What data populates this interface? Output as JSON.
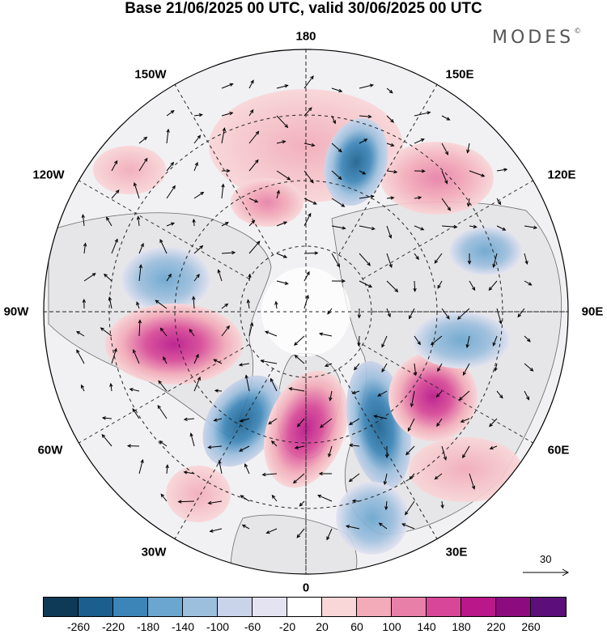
{
  "title": "Base 21/06/2025 00 UTC, valid 30/06/2025 00 UTC",
  "brand": {
    "text": "MODES",
    "mark": "©"
  },
  "longitude_labels": {
    "lon_180": "180",
    "lon_150E": "150E",
    "lon_120E": "120E",
    "lon_90E": "90E",
    "lon_60E": "60E",
    "lon_30E": "30E",
    "lon_0": "0",
    "lon_30W": "30W",
    "lon_60W": "60W",
    "lon_90W": "90W",
    "lon_120W": "120W",
    "lon_150W": "150W"
  },
  "colorbar": {
    "colors": [
      "#0f3a57",
      "#1a5f8e",
      "#3b85b8",
      "#6aa6cf",
      "#9dbfde",
      "#c9d3ea",
      "#e3e3f1",
      "#ffffff",
      "#f9d6d8",
      "#f3abb9",
      "#e87fa8",
      "#d84797",
      "#b9178a",
      "#8c0c80",
      "#5c0f78"
    ],
    "ticks": [
      "-260",
      "-220",
      "-180",
      "-140",
      "-100",
      "-60",
      "-20",
      "20",
      "60",
      "100",
      "140",
      "180",
      "220",
      "260"
    ]
  },
  "reference_vector": {
    "value": "30"
  }
}
